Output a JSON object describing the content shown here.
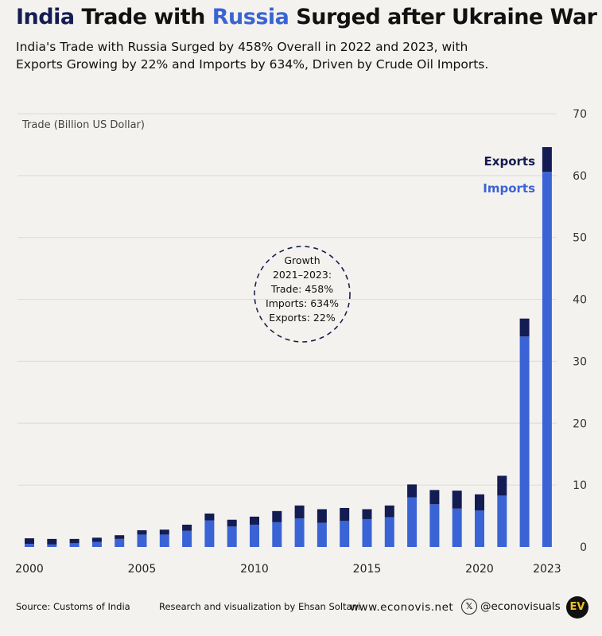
{
  "title": {
    "part1": "India",
    "part2": " Trade with ",
    "part3": "Russia",
    "part4": " Surged after Ukraine War"
  },
  "subtitle": {
    "line1": "India's Trade with Russia Surged by 458% Overall in 2022 and 2023, with",
    "line2": "Exports Growing by 22% and Imports by 634%, Driven by Crude Oil Imports."
  },
  "footer": {
    "source": "Source: Customs of India",
    "credit": "Research and visualization by Ehsan Soltani",
    "site": "www.econovis.net",
    "handle": "@econovisuals",
    "x_icon": "x-logo-icon",
    "logo": "EV"
  },
  "colors": {
    "imports": "#3a63d6",
    "exports": "#141c54",
    "grid": "#dcdad5",
    "background": "#f4f2ee"
  },
  "chart_data": {
    "type": "bar",
    "stacked": true,
    "title": "",
    "ylabel": "Trade (Billion US Dollar)",
    "xlabel": "",
    "ylim": [
      0,
      70
    ],
    "yticks": [
      0,
      10,
      20,
      30,
      40,
      50,
      60,
      70
    ],
    "grid": true,
    "x": [
      2000,
      2001,
      2002,
      2003,
      2004,
      2005,
      2006,
      2007,
      2008,
      2009,
      2010,
      2011,
      2012,
      2013,
      2014,
      2015,
      2016,
      2017,
      2018,
      2019,
      2020,
      2021,
      2022,
      2023
    ],
    "x_tick_labels": [
      "2000",
      "2005",
      "2010",
      "2015",
      "2020",
      "2023"
    ],
    "x_tick_values": [
      2000,
      2005,
      2010,
      2015,
      2020,
      2023
    ],
    "series": [
      {
        "name": "Imports",
        "color": "#3a63d6",
        "values": [
          0.5,
          0.4,
          0.6,
          0.8,
          1.3,
          2.0,
          2.0,
          2.6,
          4.3,
          3.3,
          3.6,
          4.0,
          4.6,
          3.9,
          4.2,
          4.5,
          4.8,
          8.0,
          6.9,
          6.2,
          5.9,
          8.3,
          34.0,
          60.6
        ]
      },
      {
        "name": "Exports",
        "color": "#141c54",
        "values": [
          0.9,
          0.9,
          0.7,
          0.7,
          0.6,
          0.7,
          0.8,
          1.0,
          1.1,
          1.1,
          1.3,
          1.8,
          2.1,
          2.2,
          2.1,
          1.6,
          1.9,
          2.1,
          2.3,
          2.9,
          2.6,
          3.2,
          2.9,
          4.0
        ]
      }
    ],
    "legend": {
      "placement": "top-right",
      "labels": [
        "Exports",
        "Imports"
      ]
    },
    "annotation": {
      "lines": [
        "Growth",
        "2021–2023:",
        "Trade: 458%",
        "Imports: 634%",
        "Exports: 22%"
      ]
    }
  }
}
